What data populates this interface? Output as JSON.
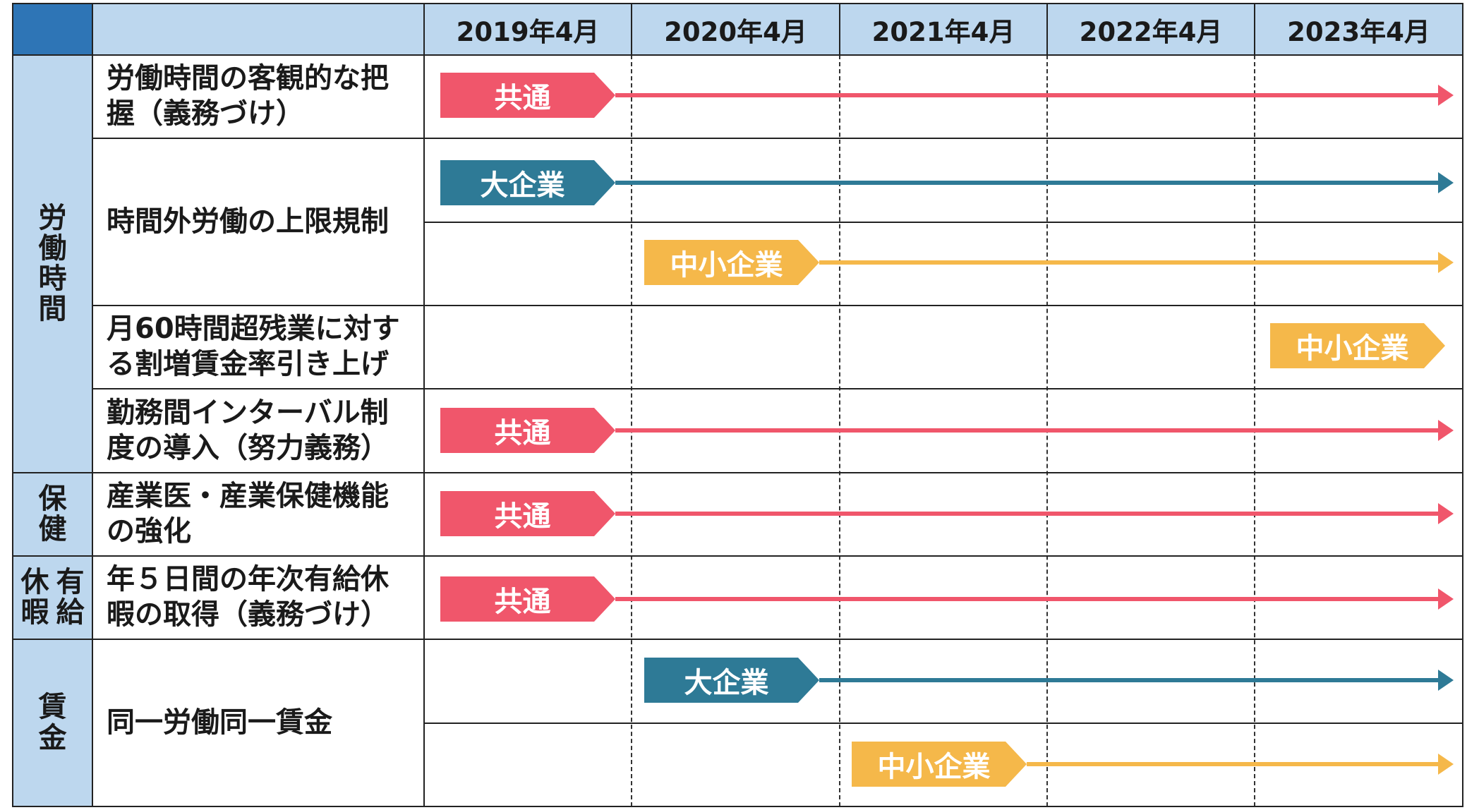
{
  "colors": {
    "common": "#f0566b",
    "large": "#2e7a96",
    "sme": "#f5b84a",
    "header_bg": "#bdd7ee",
    "corner_bg": "#2e75b6"
  },
  "header": {
    "years": [
      "2019年4月",
      "2020年4月",
      "2021年4月",
      "2022年4月",
      "2023年4月"
    ]
  },
  "categories": [
    {
      "id": "labor_time",
      "label": "労働時間"
    },
    {
      "id": "health",
      "label": "保健"
    },
    {
      "id": "paid_leave",
      "label": "有給休暇"
    },
    {
      "id": "wage",
      "label": "賃金"
    }
  ],
  "items": [
    {
      "id": "objective_tracking",
      "text": "労働時間の客観的な把握（義務づけ）"
    },
    {
      "id": "overtime_cap",
      "text": "時間外労働の上限規制"
    },
    {
      "id": "overtime_premium",
      "text": "月60時間超残業に対する割増賃金率引き上げ"
    },
    {
      "id": "interval",
      "text": "勤務間インターバル制度の導入（努力義務）"
    },
    {
      "id": "occupational_doctor",
      "text": "産業医・産業保健機能の強化"
    },
    {
      "id": "annual_leave",
      "text": "年５日間の年次有給休暇の取得（義務づけ）"
    },
    {
      "id": "equal_pay",
      "text": "同一労働同一賃金"
    }
  ],
  "bars": [
    {
      "item": "objective_tracking",
      "label": "共通",
      "type": "common",
      "start": "2019年4月",
      "arrow": true
    },
    {
      "item": "overtime_cap",
      "label": "大企業",
      "type": "large",
      "start": "2019年4月",
      "arrow": true
    },
    {
      "item": "overtime_cap",
      "label": "中小企業",
      "type": "sme",
      "start": "2020年4月",
      "arrow": true
    },
    {
      "item": "overtime_premium",
      "label": "中小企業",
      "type": "sme",
      "start": "2023年4月",
      "arrow": false
    },
    {
      "item": "interval",
      "label": "共通",
      "type": "common",
      "start": "2019年4月",
      "arrow": true
    },
    {
      "item": "occupational_doctor",
      "label": "共通",
      "type": "common",
      "start": "2019年4月",
      "arrow": true
    },
    {
      "item": "annual_leave",
      "label": "共通",
      "type": "common",
      "start": "2019年4月",
      "arrow": true
    },
    {
      "item": "equal_pay",
      "label": "大企業",
      "type": "large",
      "start": "2020年4月",
      "arrow": true
    },
    {
      "item": "equal_pay",
      "label": "中小企業",
      "type": "sme",
      "start": "2021年4月",
      "arrow": true
    }
  ]
}
